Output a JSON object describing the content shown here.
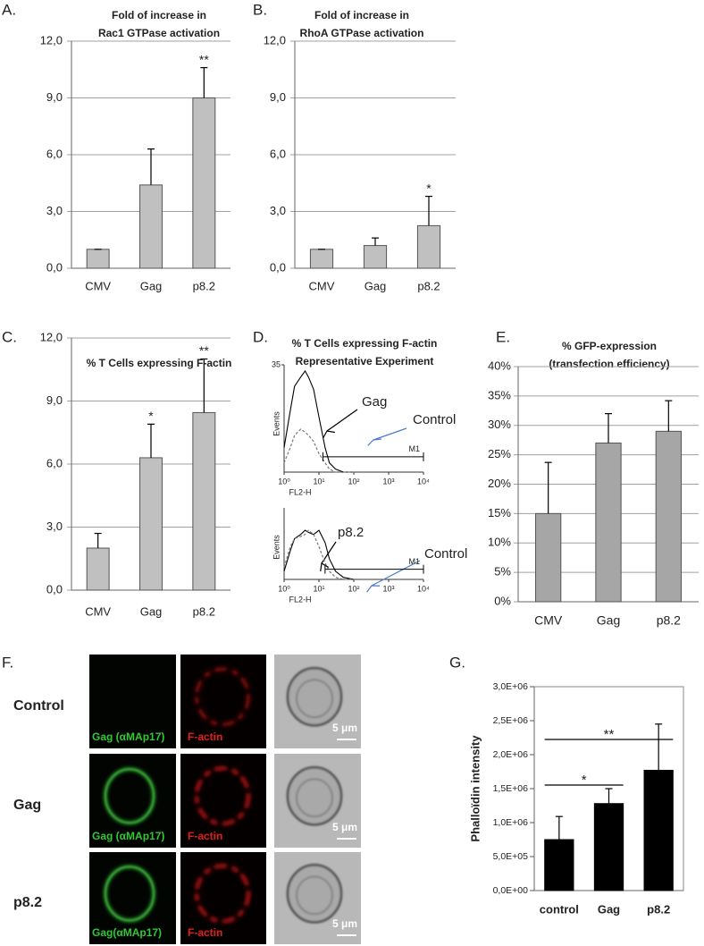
{
  "chart_data": [
    {
      "type": "bar",
      "panel_label": "A.",
      "title": [
        "Fold of increase in",
        "Rac1 GTPase activation"
      ],
      "categories": [
        "CMV",
        "Gag",
        "p8.2"
      ],
      "values": [
        1.0,
        4.4,
        9.0
      ],
      "errors": [
        0,
        1.9,
        1.6
      ],
      "value_annotations": [
        null,
        null,
        "**"
      ],
      "color": "#c0c0c0",
      "grid": true,
      "ylim": [
        0,
        12
      ],
      "yticks": [
        {
          "value": 0,
          "label": "0,0"
        },
        {
          "value": 3,
          "label": "3,0"
        },
        {
          "value": 6,
          "label": "6,0"
        },
        {
          "value": 9,
          "label": "9,0"
        },
        {
          "value": 12,
          "label": "12,0"
        }
      ]
    },
    {
      "type": "bar",
      "panel_label": "B.",
      "title": [
        "Fold of increase in",
        "RhoA GTPase activation"
      ],
      "categories": [
        "CMV",
        "Gag",
        "p8.2"
      ],
      "values": [
        1.0,
        1.2,
        2.25
      ],
      "errors": [
        0,
        0.4,
        1.55
      ],
      "value_annotations": [
        null,
        null,
        "*"
      ],
      "color": "#c0c0c0",
      "grid": true,
      "ylim": [
        0,
        12
      ],
      "yticks": [
        {
          "value": 0,
          "label": "0,0"
        },
        {
          "value": 3,
          "label": "3,0"
        },
        {
          "value": 6,
          "label": "6,0"
        },
        {
          "value": 9,
          "label": "9,0"
        },
        {
          "value": 12,
          "label": "12,0"
        }
      ]
    },
    {
      "type": "bar",
      "panel_label": "C.",
      "title": [
        "% T Cells expressing F-actin"
      ],
      "categories": [
        "CMV",
        "Gag",
        "p8.2"
      ],
      "values": [
        2.0,
        6.3,
        8.45
      ],
      "errors": [
        0.7,
        1.6,
        2.55
      ],
      "value_annotations": [
        null,
        "*",
        "**"
      ],
      "color": "#c0c0c0",
      "grid": true,
      "ylim": [
        0,
        12
      ],
      "yticks": [
        {
          "value": 0,
          "label": "0,0"
        },
        {
          "value": 3,
          "label": "3,0"
        },
        {
          "value": 6,
          "label": "6,0"
        },
        {
          "value": 9,
          "label": "9,0"
        },
        {
          "value": 12,
          "label": "12,0"
        }
      ]
    },
    {
      "type": "line",
      "panel_label": "D.",
      "title": [
        "% T Cells expressing F-actin",
        "Representative Experiment"
      ],
      "xscale": "log",
      "xlim": [
        1,
        10000
      ],
      "ylim": [
        0,
        35
      ],
      "yticks": [
        35
      ],
      "xticks": [
        {
          "value": 1,
          "label": "10⁰"
        },
        {
          "value": 10,
          "label": "10¹"
        },
        {
          "value": 100,
          "label": "10²"
        },
        {
          "value": 1000,
          "label": "10³"
        },
        {
          "value": 10000,
          "label": "10⁴"
        }
      ],
      "xlabel": "FL2-H",
      "ylabel": "Events",
      "x": [
        1,
        1.5,
        2,
        3,
        4,
        5,
        7,
        10,
        15,
        20,
        30,
        50,
        100
      ],
      "series": [
        {
          "name": "Gag",
          "color": "#000000",
          "dashed": false,
          "values": [
            8,
            20,
            28,
            31,
            33,
            31,
            27,
            18,
            8,
            3,
            1,
            0,
            0
          ]
        },
        {
          "name": "Control",
          "color": "#777777",
          "dashed": true,
          "label_arrow_color": "#4a7cc7",
          "values": [
            3,
            8,
            12,
            14,
            13,
            12,
            10,
            6,
            3,
            1,
            0,
            0,
            0
          ]
        }
      ],
      "gate": {
        "label": "M1",
        "x": [
          13,
          10000
        ],
        "y": 5
      }
    },
    {
      "type": "line",
      "xscale": "log",
      "xlim": [
        1,
        10000
      ],
      "ylim": [
        0,
        35
      ],
      "xticks": [
        {
          "value": 1,
          "label": "10⁰"
        },
        {
          "value": 10,
          "label": "10¹"
        },
        {
          "value": 100,
          "label": "10²"
        },
        {
          "value": 1000,
          "label": "10³"
        },
        {
          "value": 10000,
          "label": "10⁴"
        }
      ],
      "xlabel": "FL2-H",
      "ylabel": "Events",
      "x": [
        1,
        1.5,
        2,
        3,
        4,
        5,
        7,
        10,
        15,
        20,
        30,
        50,
        100
      ],
      "series": [
        {
          "name": "p8.2",
          "color": "#000000",
          "dashed": false,
          "values": [
            4,
            14,
            20,
            22,
            24,
            23,
            22,
            24,
            18,
            10,
            4,
            1,
            0
          ]
        },
        {
          "name": "Control",
          "color": "#777777",
          "dashed": true,
          "label_arrow_color": "#4a7cc7",
          "values": [
            6,
            16,
            20,
            21,
            22,
            24,
            22,
            16,
            8,
            4,
            1,
            0,
            0
          ]
        }
      ],
      "gate": {
        "label": "M1",
        "x": [
          15,
          10000
        ],
        "y": 5
      }
    },
    {
      "type": "bar",
      "panel_label": "E.",
      "title": [
        "% GFP-expression",
        "(transfection efficiency)"
      ],
      "categories": [
        "CMV",
        "Gag",
        "p8.2"
      ],
      "values": [
        15,
        27,
        29
      ],
      "errors": [
        8.7,
        5,
        5.2
      ],
      "color": "#a6a6a6",
      "grid": true,
      "ylim": [
        0,
        40
      ],
      "yticks": [
        {
          "value": 0,
          "label": "0%"
        },
        {
          "value": 5,
          "label": "5%"
        },
        {
          "value": 10,
          "label": "10%"
        },
        {
          "value": 15,
          "label": "15%"
        },
        {
          "value": 20,
          "label": "20%"
        },
        {
          "value": 25,
          "label": "25%"
        },
        {
          "value": 30,
          "label": "30%"
        },
        {
          "value": 35,
          "label": "35%"
        },
        {
          "value": 40,
          "label": "40%"
        }
      ]
    },
    {
      "type": "bar",
      "panel_label": "G.",
      "ylabel": "Phalloïdin intensity",
      "categories": [
        "control",
        "Gag",
        "p8.2"
      ],
      "values": [
        750000,
        1280000,
        1770000
      ],
      "errors": [
        340000,
        220000,
        680000
      ],
      "color": "#000000",
      "grid": false,
      "frame": true,
      "ylim": [
        0,
        3000000
      ],
      "yticks": [
        {
          "value": 0,
          "label": "0,0E+00"
        },
        {
          "value": 500000,
          "label": "5,0E+05"
        },
        {
          "value": 1000000,
          "label": "1,0E+06"
        },
        {
          "value": 1500000,
          "label": "1,5E+06"
        },
        {
          "value": 2000000,
          "label": "2,0E+06"
        },
        {
          "value": 2500000,
          "label": "2,5E+06"
        },
        {
          "value": 3000000,
          "label": "3,0E+06"
        }
      ],
      "comparisons": [
        {
          "between": [
            "control",
            "Gag"
          ],
          "label": "*"
        },
        {
          "between": [
            "control",
            "p8.2"
          ],
          "label": "**"
        }
      ]
    }
  ],
  "panel_f": {
    "label": "F.",
    "rows": [
      {
        "name": "Control",
        "green": "Gag (αMAp17)",
        "red": "F-actin",
        "scale": "5 μm"
      },
      {
        "name": "Gag",
        "green": "Gag (αMAp17)",
        "red": "F-actin",
        "scale": "5 μm"
      },
      {
        "name": "p8.2",
        "green": "Gag(αMAp17)",
        "red": "F-actin",
        "scale": "5 μm"
      }
    ]
  }
}
